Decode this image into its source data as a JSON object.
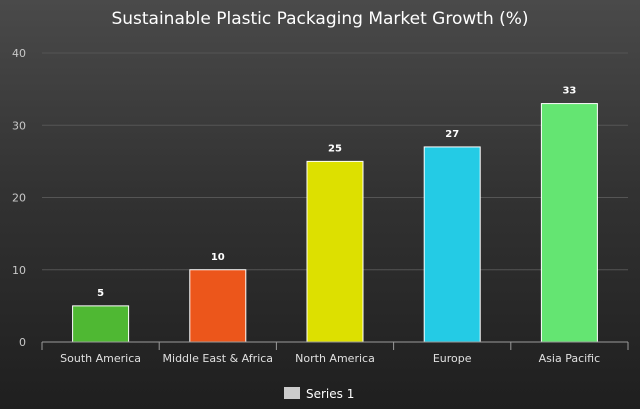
{
  "chart_data": {
    "type": "bar",
    "title": "Sustainable Plastic Packaging Market Growth (%)",
    "xlabel": "",
    "ylabel": "",
    "categories": [
      "South America",
      "Middle East & Africa",
      "North America",
      "Europe",
      "Asia Pacific"
    ],
    "series": [
      {
        "name": "Series 1",
        "values": [
          5,
          10,
          25,
          27,
          33
        ],
        "colors": [
          "#4fb833",
          "#ec561b",
          "#dde000",
          "#24cbe5",
          "#64e572"
        ]
      }
    ],
    "ylim": [
      0,
      40
    ],
    "yticks": [
      0,
      10,
      20,
      30,
      40
    ],
    "grid": true,
    "legend": "bottom-center",
    "legend_color": "#cccccc"
  }
}
